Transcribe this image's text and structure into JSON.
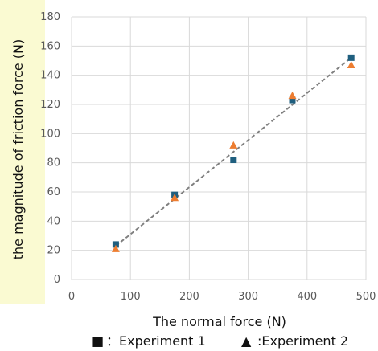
{
  "chart_data": {
    "type": "scatter",
    "xlabel": "The normal force (N)",
    "ylabel": "the magnitude of friction force (N)",
    "xlim": [
      0,
      500
    ],
    "ylim": [
      0,
      180
    ],
    "x_ticks": [
      "0",
      "100",
      "200",
      "300",
      "400",
      "500"
    ],
    "y_ticks": [
      "0",
      "20",
      "40",
      "60",
      "80",
      "100",
      "120",
      "140",
      "160",
      "180"
    ],
    "grid": true,
    "series": [
      {
        "name": "Experiment 1",
        "marker": "square",
        "color": "#1f5f7f",
        "x": [
          75,
          175,
          275,
          375,
          475
        ],
        "y": [
          24,
          58,
          82,
          123,
          152
        ]
      },
      {
        "name": "Experiment 2",
        "marker": "triangle",
        "color": "#ed7d31",
        "x": [
          75,
          175,
          275,
          375,
          475
        ],
        "y": [
          21,
          56,
          92,
          126,
          147
        ]
      }
    ],
    "trendline": {
      "style": "dashed",
      "color": "#7f7f7f",
      "x": [
        75,
        475
      ],
      "y": [
        23,
        152
      ]
    },
    "legend": {
      "position": "bottom",
      "items": [
        {
          "symbol": "■",
          "text": "：Experiment 1"
        },
        {
          "symbol": "▲",
          "text": ":Experiment 2"
        }
      ]
    },
    "ylabel_background": "#fafad2"
  }
}
